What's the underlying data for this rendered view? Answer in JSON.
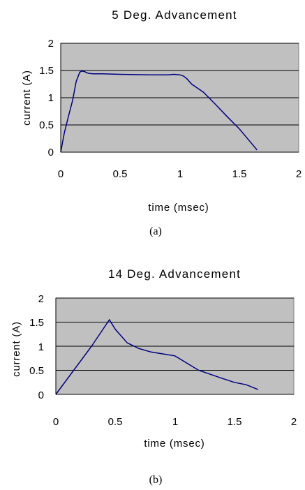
{
  "chart_data": [
    {
      "type": "line",
      "title": "5 Deg. Advancement",
      "xlabel": "time (msec)",
      "ylabel": "current (A)",
      "caption": "(a)",
      "xlim": [
        0,
        2
      ],
      "ylim": [
        0,
        2
      ],
      "xticks": [
        "0",
        "0.5",
        "1",
        "1.5",
        "2"
      ],
      "yticks": [
        "0",
        "0.5",
        "1",
        "1.5",
        "2"
      ],
      "grid": "horizontal",
      "plot_background": "#c0c0c0",
      "line_color": "#000080",
      "series": [
        {
          "x": [
            0,
            0.03,
            0.07,
            0.1,
            0.13,
            0.16,
            0.18,
            0.2,
            0.23,
            0.27,
            0.35,
            0.5,
            0.75,
            0.9,
            0.95,
            1.0,
            1.03,
            1.06,
            1.1,
            1.2,
            1.3,
            1.4,
            1.5,
            1.6,
            1.65
          ],
          "y": [
            0,
            0.35,
            0.7,
            0.95,
            1.3,
            1.47,
            1.49,
            1.48,
            1.45,
            1.44,
            1.44,
            1.43,
            1.42,
            1.42,
            1.43,
            1.42,
            1.4,
            1.35,
            1.25,
            1.1,
            0.88,
            0.65,
            0.43,
            0.17,
            0.04
          ]
        }
      ]
    },
    {
      "type": "line",
      "title": "14 Deg. Advancement",
      "xlabel": "time (msec)",
      "ylabel": "current (A)",
      "caption": "(b)",
      "xlim": [
        0,
        2
      ],
      "ylim": [
        0,
        2
      ],
      "xticks": [
        "0",
        "0.5",
        "1",
        "1.5",
        "2"
      ],
      "yticks": [
        "0",
        "0.5",
        "1",
        "1.5",
        "2"
      ],
      "grid": "horizontal",
      "plot_background": "#c0c0c0",
      "line_color": "#000080",
      "series": [
        {
          "x": [
            0,
            0.15,
            0.3,
            0.45,
            0.5,
            0.6,
            0.7,
            0.8,
            1.0,
            1.2,
            1.4,
            1.5,
            1.6,
            1.7
          ],
          "y": [
            0,
            0.5,
            1.0,
            1.55,
            1.35,
            1.07,
            0.95,
            0.88,
            0.8,
            0.5,
            0.33,
            0.25,
            0.2,
            0.1
          ]
        }
      ]
    }
  ]
}
